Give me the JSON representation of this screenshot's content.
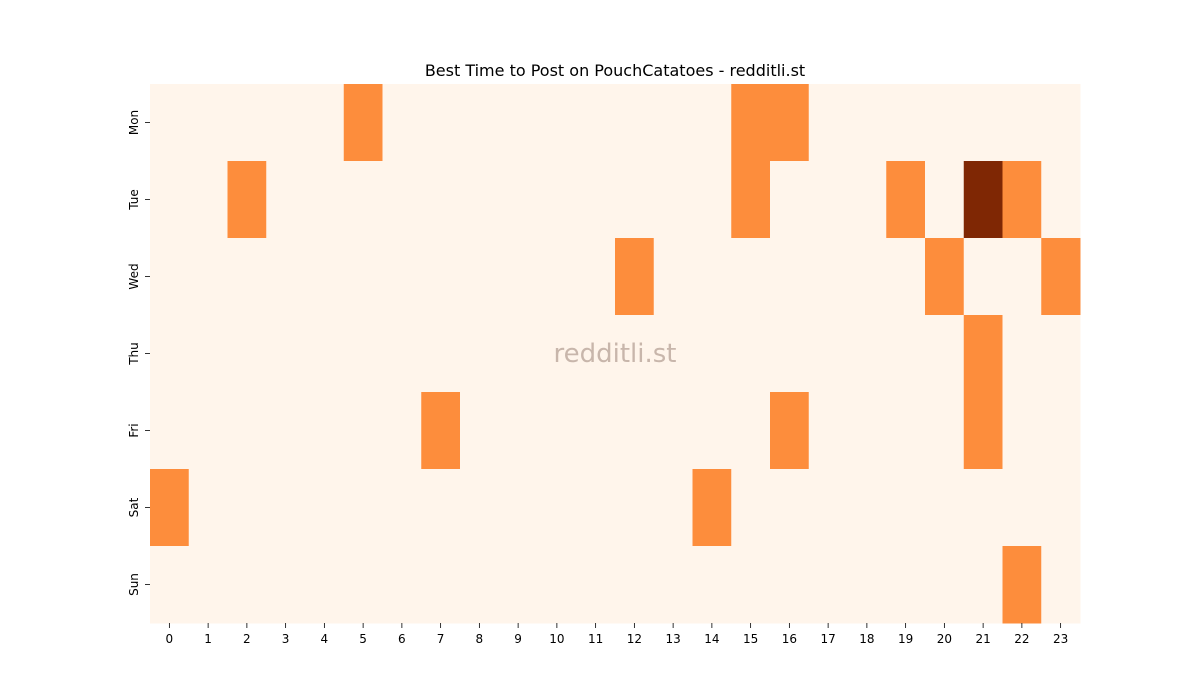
{
  "chart_data": {
    "type": "heatmap",
    "title": "Best Time to Post on PouchCatatoes - redditli.st",
    "watermark": "redditli.st",
    "x_categories": [
      "0",
      "1",
      "2",
      "3",
      "4",
      "5",
      "6",
      "7",
      "8",
      "9",
      "10",
      "11",
      "12",
      "13",
      "14",
      "15",
      "16",
      "17",
      "18",
      "19",
      "20",
      "21",
      "22",
      "23"
    ],
    "y_categories": [
      "Mon",
      "Tue",
      "Wed",
      "Thu",
      "Fri",
      "Sat",
      "Sun"
    ],
    "values": [
      [
        0,
        0,
        0,
        0,
        0,
        1,
        0,
        0,
        0,
        0,
        0,
        0,
        0,
        0,
        0,
        1,
        1,
        0,
        0,
        0,
        0,
        0,
        0,
        0
      ],
      [
        0,
        0,
        1,
        0,
        0,
        0,
        0,
        0,
        0,
        0,
        0,
        0,
        0,
        0,
        0,
        1,
        0,
        0,
        0,
        1,
        0,
        2,
        1,
        0
      ],
      [
        0,
        0,
        0,
        0,
        0,
        0,
        0,
        0,
        0,
        0,
        0,
        0,
        1,
        0,
        0,
        0,
        0,
        0,
        0,
        0,
        1,
        0,
        0,
        1
      ],
      [
        0,
        0,
        0,
        0,
        0,
        0,
        0,
        0,
        0,
        0,
        0,
        0,
        0,
        0,
        0,
        0,
        0,
        0,
        0,
        0,
        0,
        1,
        0,
        0
      ],
      [
        0,
        0,
        0,
        0,
        0,
        0,
        0,
        1,
        0,
        0,
        0,
        0,
        0,
        0,
        0,
        0,
        1,
        0,
        0,
        0,
        0,
        1,
        0,
        0
      ],
      [
        1,
        0,
        0,
        0,
        0,
        0,
        0,
        0,
        0,
        0,
        0,
        0,
        0,
        0,
        1,
        0,
        0,
        0,
        0,
        0,
        0,
        0,
        0,
        0
      ],
      [
        0,
        0,
        0,
        0,
        0,
        0,
        0,
        0,
        0,
        0,
        0,
        0,
        0,
        0,
        0,
        0,
        0,
        0,
        0,
        0,
        0,
        0,
        1,
        0
      ]
    ],
    "colormap": [
      "#fff5eb",
      "#fd8d3c",
      "#7f2704"
    ],
    "grid": false,
    "legend": "none"
  }
}
